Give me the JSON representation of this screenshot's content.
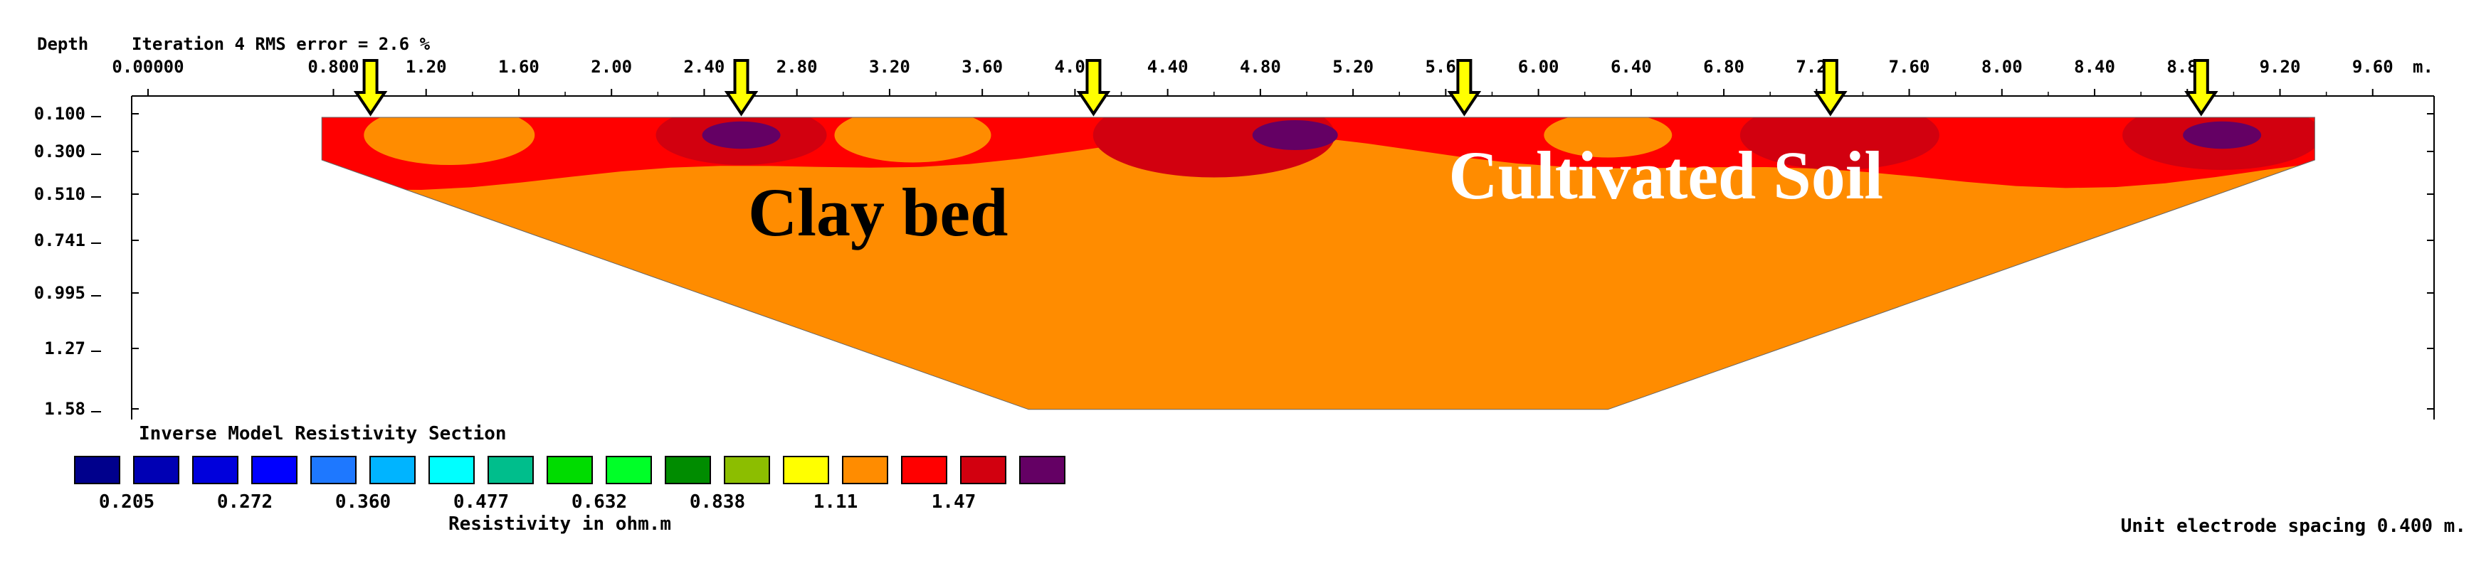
{
  "chart_data": {
    "type": "heatmap",
    "title": "Iteration 4 RMS error = 2.6 %",
    "subtitle": "Inverse Model Resistivity Section",
    "ylabel": "Depth",
    "xlabel_unit": "m.",
    "x_ticks": [
      "0.00000",
      "0.800",
      "1.20",
      "1.60",
      "2.00",
      "2.40",
      "2.80",
      "3.20",
      "3.60",
      "4.00",
      "4.40",
      "4.80",
      "5.20",
      "5.60",
      "6.00",
      "6.40",
      "6.80",
      "7.20",
      "7.60",
      "8.00",
      "8.40",
      "8.80",
      "9.20",
      "9.60"
    ],
    "y_ticks": [
      "0.100",
      "0.300",
      "0.510",
      "0.741",
      "0.995",
      "1.27",
      "1.58"
    ],
    "xlim": [
      0,
      10.0
    ],
    "ylim": [
      0.0,
      1.58
    ],
    "legend_title": "Resistivity in ohm.m",
    "legend_colors": [
      "#00008c",
      "#0000b4",
      "#0000dc",
      "#0000ff",
      "#1e78ff",
      "#00b4ff",
      "#00ffff",
      "#00be8c",
      "#00dc00",
      "#00ff28",
      "#008c00",
      "#8cbe00",
      "#ffff00",
      "#ff8c00",
      "#ff0000",
      "#d2000f",
      "#640064"
    ],
    "legend_labels": [
      "0.205",
      "0.272",
      "0.360",
      "0.477",
      "0.632",
      "0.838",
      "1.11",
      "1.47"
    ],
    "footer": "Unit electrode spacing 0.400 m.",
    "annotations": [
      {
        "text": "Clay bed",
        "x": 3.15,
        "depth": 0.62
      },
      {
        "text": "Cultivated Soil",
        "x": 6.55,
        "depth": 0.42
      }
    ],
    "arrow_positions_m": [
      0.96,
      2.56,
      4.08,
      5.68,
      7.26,
      8.86
    ],
    "arrow_color": "#ffff00",
    "section": {
      "x_start": 0.75,
      "x_end": 9.35,
      "bottom_start": 3.8,
      "bottom_end": 6.3,
      "layer_depths": [
        0.25,
        0.48,
        0.74,
        0.99,
        1.27,
        1.58
      ],
      "layer_colors": [
        "#ff0000",
        "#ff8c00",
        "#ffff00",
        "#8cbe00",
        "#00dc00",
        "#00be8c",
        "#00ffff",
        "#00b4ff",
        "#1e78ff",
        "#0000ff",
        "#0000dc"
      ]
    }
  }
}
